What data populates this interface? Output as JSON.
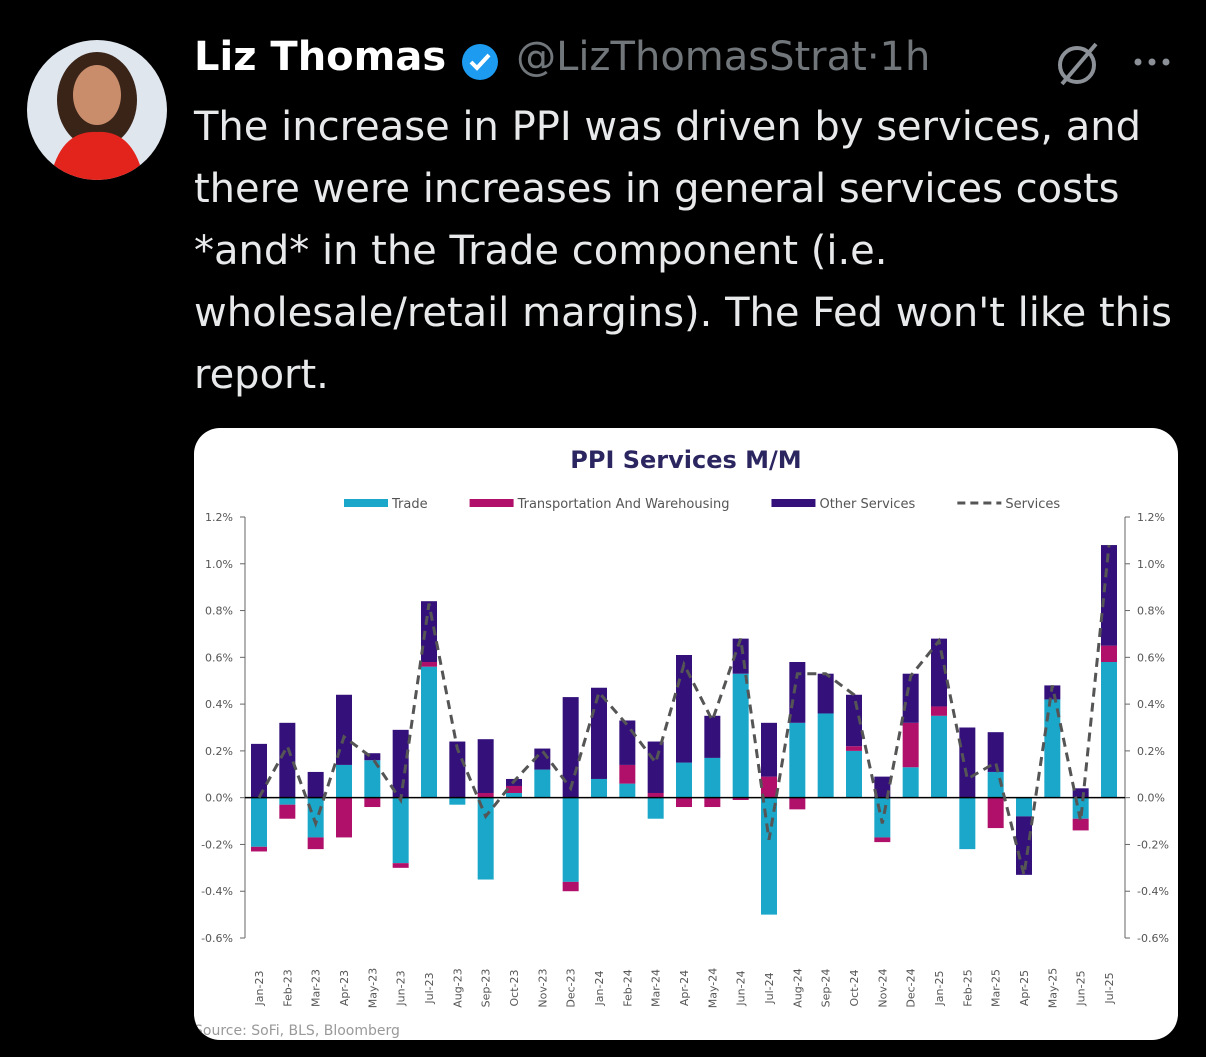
{
  "tweet": {
    "name": "Liz Thomas",
    "handle": "@LizThomasStrat",
    "separator": "·",
    "time": "1h",
    "text": "The increase in PPI was driven by services, and there were increases in general services costs *and* in the Trade component (i.e. wholesale/retail margins). The Fed won't like this report."
  },
  "chart_data": {
    "type": "bar",
    "stacked": true,
    "title": "PPI Services M/M",
    "source": "Source: SoFi, BLS, Bloomberg",
    "categories": [
      "Jan-23",
      "Feb-23",
      "Mar-23",
      "Apr-23",
      "May-23",
      "Jun-23",
      "Jul-23",
      "Aug-23",
      "Sep-23",
      "Oct-23",
      "Nov-23",
      "Dec-23",
      "Jan-24",
      "Feb-24",
      "Mar-24",
      "Apr-24",
      "May-24",
      "Jun-24",
      "Jul-24",
      "Aug-24",
      "Sep-24",
      "Oct-24",
      "Nov-24",
      "Dec-24",
      "Jan-25",
      "Feb-25",
      "Mar-25",
      "Apr-25",
      "May-25",
      "Jun-25",
      "Jul-25"
    ],
    "series": [
      {
        "name": "Trade",
        "color": "#1aa7c9",
        "values": [
          -0.21,
          -0.03,
          -0.17,
          0.14,
          0.16,
          -0.28,
          0.56,
          -0.03,
          -0.35,
          0.02,
          0.12,
          -0.36,
          0.08,
          0.06,
          -0.09,
          0.15,
          0.17,
          0.53,
          -0.5,
          0.32,
          0.36,
          0.2,
          -0.17,
          0.13,
          0.35,
          -0.22,
          0.11,
          -0.08,
          0.42,
          -0.09,
          0.58
        ]
      },
      {
        "name": "Transportation And Warehousing",
        "color": "#b0106a",
        "values": [
          -0.02,
          -0.06,
          -0.05,
          -0.17,
          -0.04,
          -0.02,
          0.02,
          0,
          0.02,
          0.03,
          0,
          -0.04,
          0,
          0.08,
          0.02,
          -0.04,
          -0.04,
          -0.01,
          0.09,
          -0.05,
          0,
          0.02,
          -0.02,
          0.19,
          0.04,
          0,
          -0.13,
          0,
          0,
          -0.05,
          0.07
        ]
      },
      {
        "name": "Other Services",
        "color": "#33107a",
        "values": [
          0.23,
          0.32,
          0.11,
          0.3,
          0.03,
          0.29,
          0.26,
          0.24,
          0.23,
          0.03,
          0.09,
          0.43,
          0.39,
          0.19,
          0.22,
          0.46,
          0.18,
          0.15,
          0.23,
          0.26,
          0.17,
          0.22,
          0.09,
          0.21,
          0.29,
          0.3,
          0.17,
          -0.25,
          0.06,
          0.04,
          0.43
        ]
      },
      {
        "name": "Services",
        "type": "line",
        "dashed": true,
        "color": "#555555",
        "values": [
          0.0,
          0.22,
          -0.11,
          0.26,
          0.17,
          -0.01,
          0.83,
          0.21,
          -0.08,
          0.07,
          0.2,
          0.04,
          0.45,
          0.31,
          0.15,
          0.57,
          0.33,
          0.68,
          -0.18,
          0.53,
          0.53,
          0.44,
          -0.11,
          0.52,
          0.67,
          0.08,
          0.15,
          -0.33,
          0.48,
          -0.1,
          1.08
        ]
      }
    ],
    "ylim": [
      -0.6,
      1.2
    ],
    "yticks": [
      {
        "value": -0.6,
        "label": "-0.6%"
      },
      {
        "value": -0.4,
        "label": "-0.4%"
      },
      {
        "value": -0.2,
        "label": "-0.2%"
      },
      {
        "value": 0,
        "label": "0.0%"
      },
      {
        "value": 0.2,
        "label": "0.2%"
      },
      {
        "value": 0.4,
        "label": "0.4%"
      },
      {
        "value": 0.6,
        "label": "0.6%"
      },
      {
        "value": 0.8,
        "label": "0.8%"
      },
      {
        "value": 1.0,
        "label": "1.0%"
      },
      {
        "value": 1.2,
        "label": "1.2%"
      }
    ],
    "legend": "top"
  }
}
